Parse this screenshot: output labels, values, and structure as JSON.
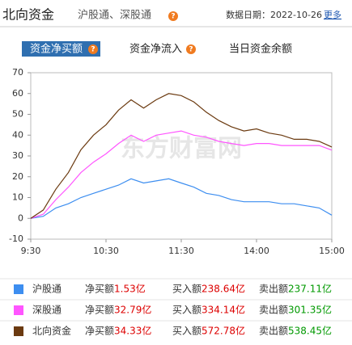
{
  "header": {
    "title": "北向资金",
    "subtitle": "沪股通、深股通",
    "help_icon": "?",
    "date": "数据日期：2022-10-26",
    "more": "更多"
  },
  "tabs": [
    "资金净买额",
    "资金净流入",
    "当日资金余额"
  ],
  "chart_data": {
    "type": "line",
    "watermark": "东方财富网",
    "x": [
      0,
      10,
      20,
      30,
      40,
      50,
      60,
      70,
      80,
      90,
      100,
      110,
      120,
      130,
      140,
      150,
      160,
      170,
      180,
      190,
      200,
      210,
      220,
      230,
      240
    ],
    "xlim": [
      0,
      240
    ],
    "xticks": [
      {
        "value": 0,
        "label": "9:30"
      },
      {
        "value": 60,
        "label": "10:30"
      },
      {
        "value": 120,
        "label": "11:30"
      },
      {
        "value": 180,
        "label": "14:00"
      },
      {
        "value": 240,
        "label": "15:00"
      }
    ],
    "ylim": [
      -10,
      70
    ],
    "yticks": [
      -10,
      0,
      10,
      20,
      30,
      40,
      50,
      60,
      70
    ],
    "grid": false,
    "series": [
      {
        "name": "沪股通",
        "color": "#3d8ef0",
        "values": [
          0,
          1,
          5,
          7,
          10,
          12,
          14,
          16,
          19,
          17,
          18,
          19,
          17,
          15,
          12,
          11,
          9,
          8,
          8,
          8,
          7,
          7,
          6,
          5,
          1.53
        ]
      },
      {
        "name": "深股通",
        "color": "#ff55ff",
        "values": [
          0,
          2,
          9,
          15,
          22,
          27,
          31,
          36,
          40,
          37,
          40,
          41,
          42,
          40,
          39,
          37,
          36,
          35,
          36,
          36,
          35,
          35,
          35,
          35,
          32.79
        ]
      },
      {
        "name": "北向资金",
        "color": "#6b3a10",
        "values": [
          0,
          4,
          14,
          22,
          33,
          40,
          45,
          52,
          57,
          53,
          57,
          60,
          59,
          56,
          51,
          47,
          44,
          42,
          43,
          41,
          40,
          38,
          38,
          37,
          34.33
        ]
      }
    ]
  },
  "legend_table": {
    "net_label": "净买额",
    "buy_label": "买入额",
    "sell_label": "卖出额",
    "rows": [
      {
        "net": "1.53亿",
        "buy": "238.64亿",
        "sell": "237.11亿"
      },
      {
        "net": "32.79亿",
        "buy": "334.14亿",
        "sell": "301.35亿"
      },
      {
        "net": "34.33亿",
        "buy": "572.78亿",
        "sell": "538.45亿"
      }
    ]
  }
}
